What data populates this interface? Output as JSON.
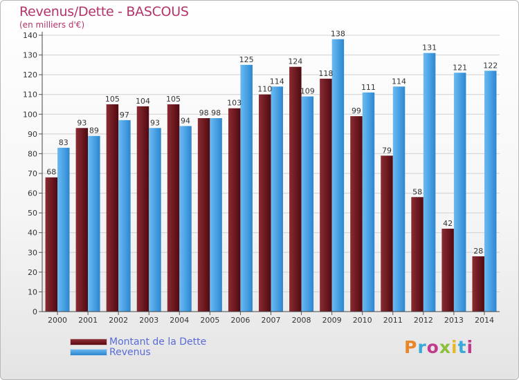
{
  "header": {
    "title": "Revenus/Dette - BASCOUS",
    "subtitle": "(en milliers d'€)"
  },
  "legend": {
    "debt_label": "Montant de la Dette",
    "revenue_label": "Revenus"
  },
  "brand": {
    "text": "Proxiti",
    "letter_colors": [
      "#e8862a",
      "#3aa8d8",
      "#c23a8a",
      "#8bbf3a",
      "#e8b62a",
      "#3aa8d8",
      "#c23a8a"
    ]
  },
  "colors": {
    "debt_top": "#8c2f36",
    "debt_bottom": "#5a0c12",
    "revenue_top": "#69b6ee",
    "revenue_bottom": "#2a84cf",
    "title": "#b3336b",
    "legend_text": "#5a6ad8"
  },
  "chart_data": {
    "type": "bar",
    "categories": [
      "2000",
      "2001",
      "2002",
      "2003",
      "2004",
      "2005",
      "2006",
      "2007",
      "2008",
      "2009",
      "2010",
      "2011",
      "2012",
      "2013",
      "2014"
    ],
    "series": [
      {
        "name": "Montant de la Dette",
        "values": [
          68,
          93,
          105,
          104,
          105,
          98,
          103,
          110,
          124,
          118,
          99,
          79,
          58,
          42,
          28
        ]
      },
      {
        "name": "Revenus",
        "values": [
          83,
          89,
          97,
          93,
          94,
          98,
          125,
          114,
          109,
          138,
          111,
          114,
          131,
          121,
          122
        ]
      }
    ],
    "title": "Revenus/Dette - BASCOUS",
    "ylabel": "(en milliers d'€)",
    "ylim": [
      0,
      140
    ],
    "yticks": [
      0,
      10,
      20,
      30,
      40,
      50,
      60,
      70,
      80,
      90,
      100,
      110,
      120,
      130,
      140
    ],
    "grid": true,
    "legend": "bottom-left"
  }
}
